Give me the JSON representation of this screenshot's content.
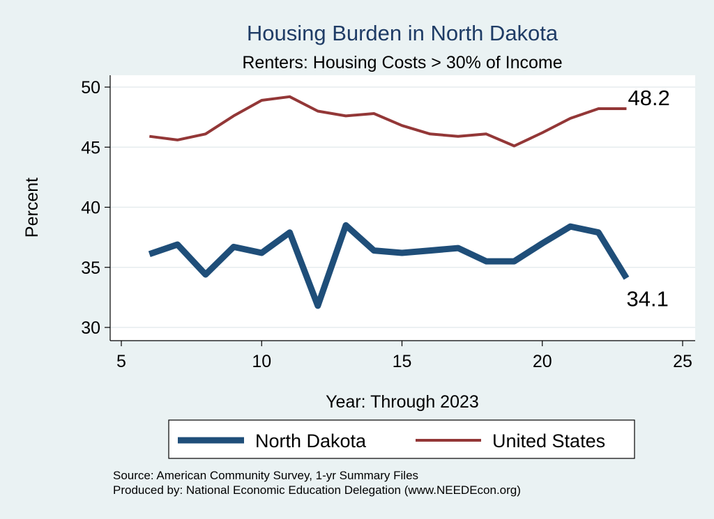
{
  "chart_data": {
    "type": "line",
    "title": "Housing Burden in North Dakota",
    "subtitle": "Renters: Housing Costs > 30% of Income",
    "xlabel": "Year: Through 2023",
    "ylabel": "Percent",
    "xlim": [
      5,
      25
    ],
    "ylim": [
      30,
      50
    ],
    "xticks": [
      5,
      10,
      15,
      20,
      25
    ],
    "yticks": [
      30,
      35,
      40,
      45,
      50
    ],
    "grid": "horizontal",
    "legend_position": "bottom",
    "series": [
      {
        "name": "North Dakota",
        "color": "#1f4e79",
        "x": [
          6,
          7,
          8,
          9,
          10,
          11,
          12,
          13,
          14,
          15,
          16,
          17,
          18,
          19,
          20,
          21,
          22,
          23
        ],
        "values": [
          36.1,
          36.9,
          34.4,
          36.7,
          36.2,
          37.9,
          31.8,
          38.5,
          36.4,
          36.2,
          36.4,
          36.6,
          35.5,
          35.5,
          37.0,
          38.4,
          37.9,
          34.1
        ],
        "end_label": "34.1"
      },
      {
        "name": "United States",
        "color": "#933737",
        "x": [
          6,
          7,
          8,
          9,
          10,
          11,
          12,
          13,
          14,
          15,
          16,
          17,
          18,
          19,
          20,
          21,
          22,
          23
        ],
        "values": [
          45.9,
          45.6,
          46.1,
          47.6,
          48.9,
          49.2,
          48.0,
          47.6,
          47.8,
          46.8,
          46.1,
          45.9,
          46.1,
          45.1,
          46.2,
          47.4,
          48.2,
          48.2
        ],
        "end_label": "48.2"
      }
    ],
    "notes": [
      "Source: American Community Survey, 1-yr Summary Files",
      "Produced by: National Economic Education Delegation (www.NEEDEcon.org)"
    ]
  }
}
